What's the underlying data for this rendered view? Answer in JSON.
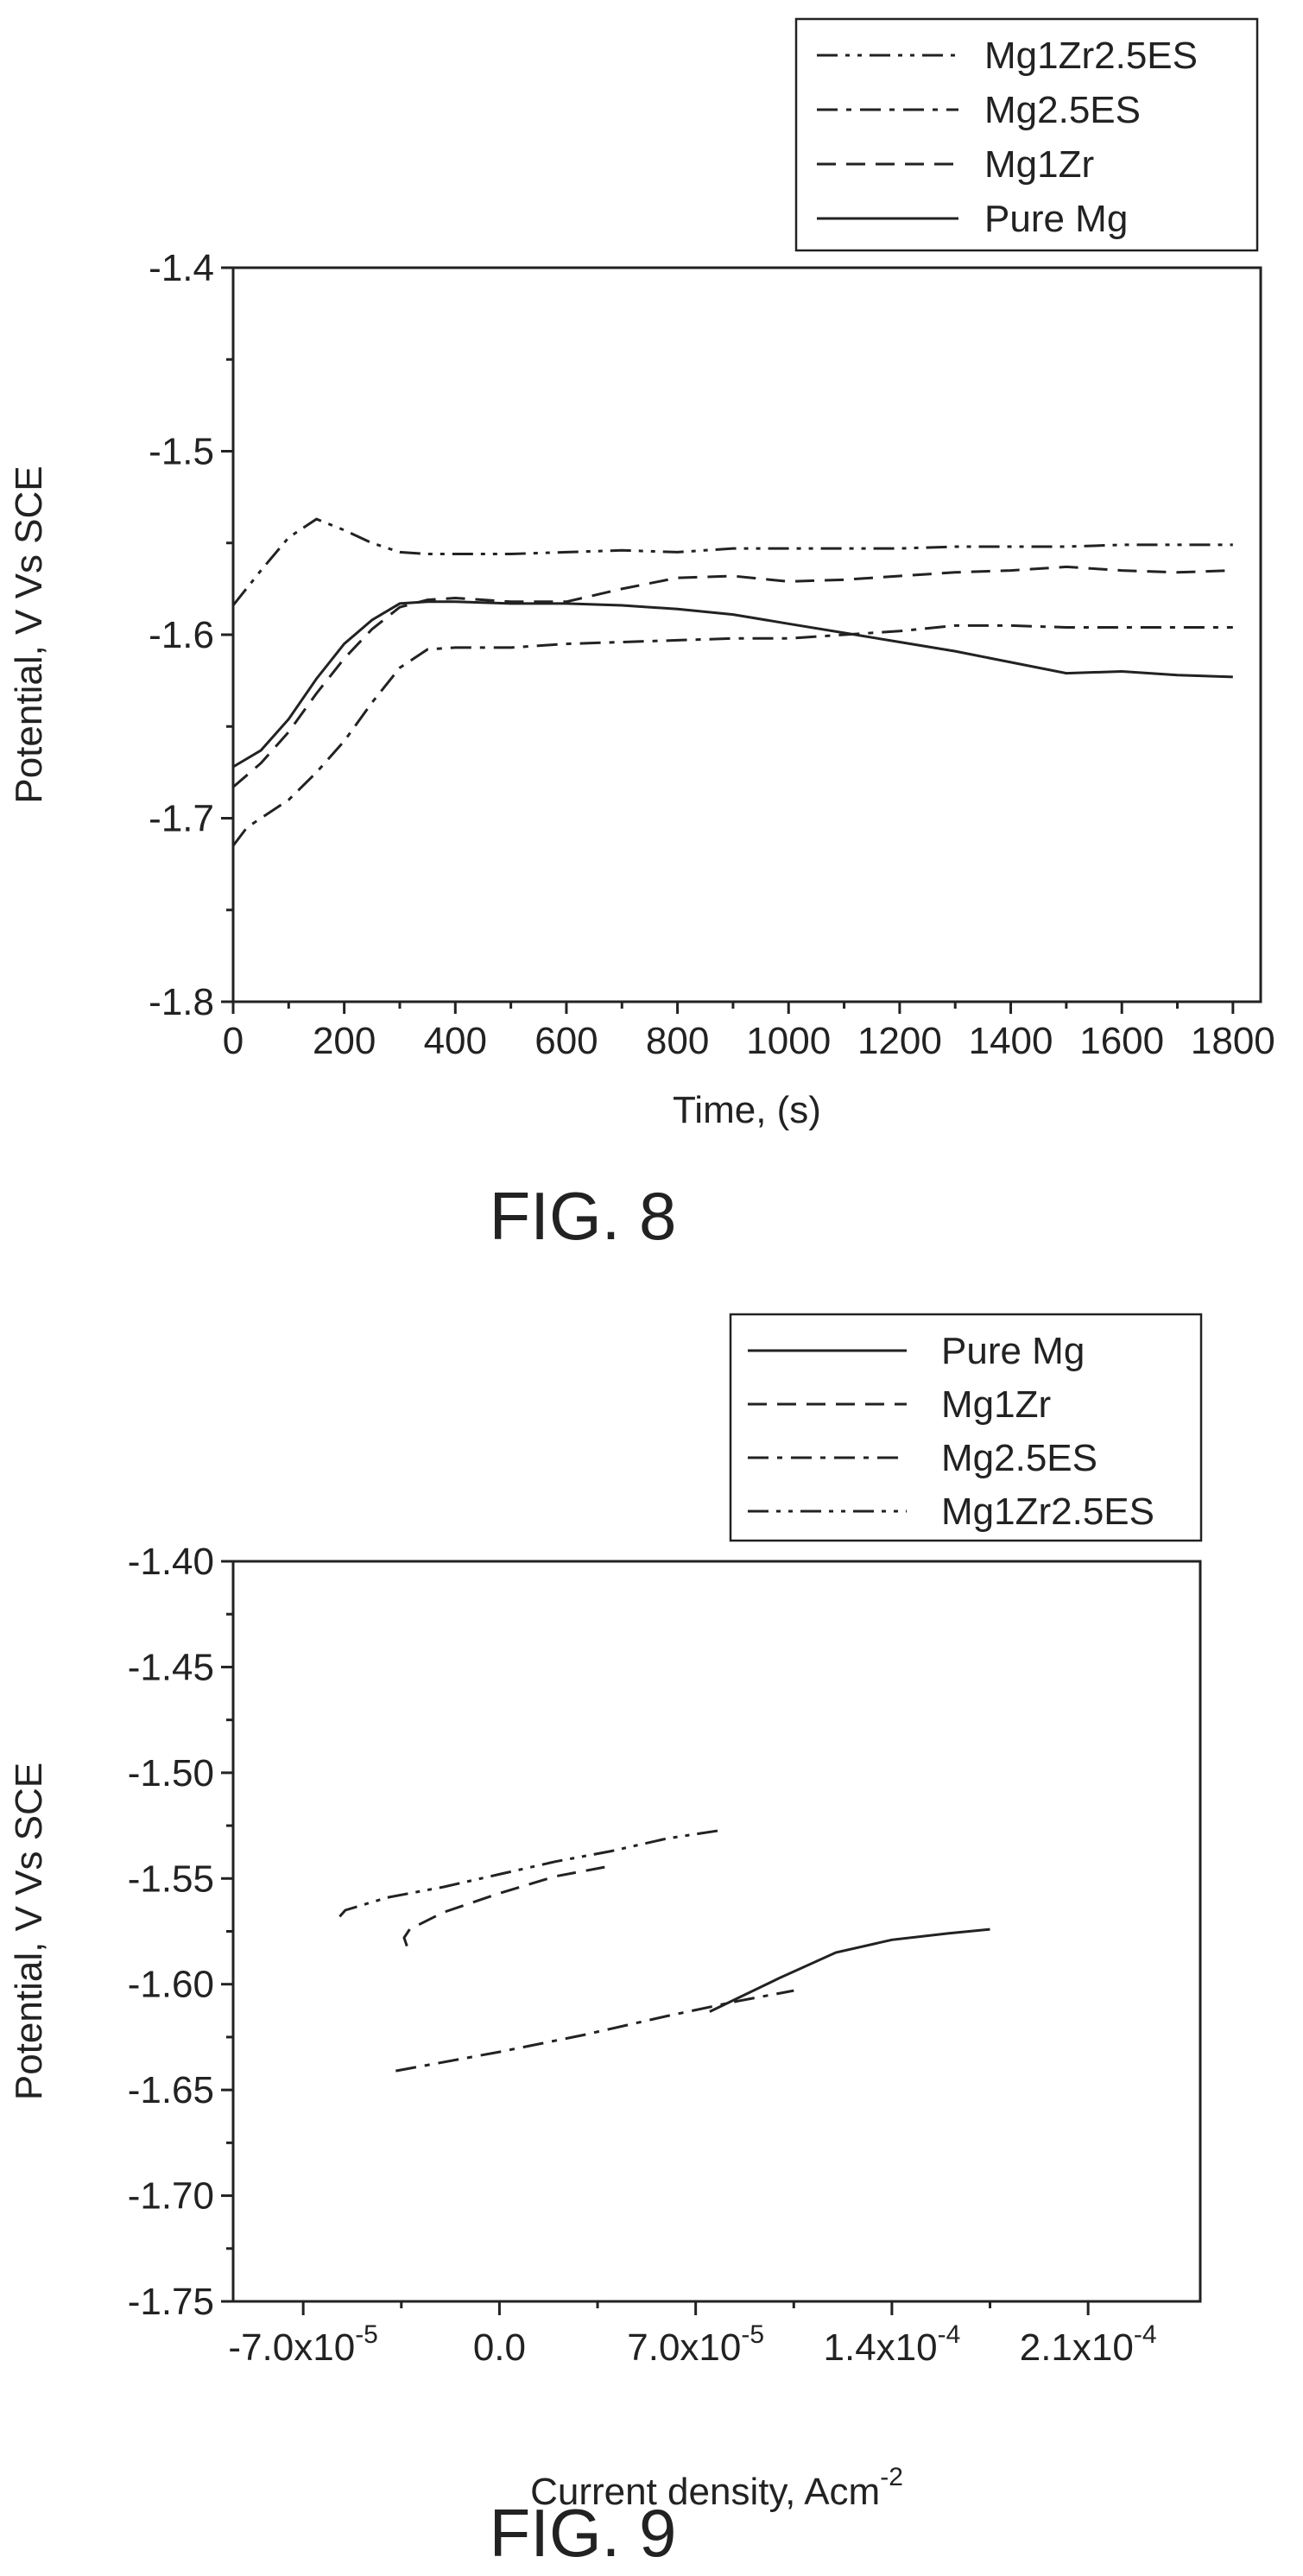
{
  "chart_data": [
    {
      "type": "line",
      "caption": "FIG. 8",
      "xlabel": "Time, (s)",
      "ylabel": "Potential, V Vs SCE",
      "xlim": [
        0,
        1850
      ],
      "ylim": [
        -1.8,
        -1.4
      ],
      "xticks": [
        0,
        200,
        400,
        600,
        800,
        1000,
        1200,
        1400,
        1600,
        1800
      ],
      "xtick_labels": [
        "0",
        "200",
        "400",
        "600",
        "800",
        "1000",
        "1200",
        "1400",
        "1600",
        "1800"
      ],
      "yticks": [
        -1.4,
        -1.5,
        -1.6,
        -1.7,
        -1.8
      ],
      "ytick_labels": [
        "-1.4",
        "-1.5",
        "-1.6",
        "-1.7",
        "-1.8"
      ],
      "legend_position": "top-right-outside",
      "legend": [
        "Mg1Zr2.5ES",
        "Mg2.5ES",
        "Mg1Zr",
        "Pure Mg"
      ],
      "series": [
        {
          "name": "Mg1Zr2.5ES",
          "dash": "dash-dot-dot",
          "x": [
            0,
            50,
            100,
            150,
            200,
            250,
            300,
            350,
            400,
            500,
            600,
            700,
            800,
            900,
            1000,
            1100,
            1200,
            1300,
            1400,
            1500,
            1600,
            1700,
            1800
          ],
          "y": [
            -1.584,
            -1.565,
            -1.547,
            -1.537,
            -1.543,
            -1.55,
            -1.555,
            -1.556,
            -1.556,
            -1.556,
            -1.555,
            -1.554,
            -1.555,
            -1.553,
            -1.553,
            -1.553,
            -1.553,
            -1.552,
            -1.552,
            -1.552,
            -1.551,
            -1.551,
            -1.551
          ]
        },
        {
          "name": "Mg2.5ES",
          "dash": "dash-dot",
          "x": [
            0,
            25,
            50,
            100,
            150,
            200,
            250,
            300,
            350,
            400,
            500,
            600,
            700,
            800,
            900,
            1000,
            1100,
            1200,
            1300,
            1400,
            1500,
            1600,
            1700,
            1800
          ],
          "y": [
            -1.715,
            -1.705,
            -1.7,
            -1.69,
            -1.675,
            -1.658,
            -1.637,
            -1.618,
            -1.608,
            -1.607,
            -1.607,
            -1.605,
            -1.604,
            -1.603,
            -1.602,
            -1.602,
            -1.6,
            -1.598,
            -1.595,
            -1.595,
            -1.596,
            -1.596,
            -1.596,
            -1.596
          ]
        },
        {
          "name": "Mg1Zr",
          "dash": "dashed",
          "x": [
            0,
            50,
            100,
            150,
            200,
            250,
            300,
            350,
            400,
            500,
            600,
            700,
            800,
            900,
            1000,
            1100,
            1200,
            1300,
            1400,
            1500,
            1600,
            1700,
            1800
          ],
          "y": [
            -1.683,
            -1.67,
            -1.653,
            -1.632,
            -1.613,
            -1.597,
            -1.585,
            -1.581,
            -1.58,
            -1.582,
            -1.582,
            -1.575,
            -1.569,
            -1.568,
            -1.571,
            -1.57,
            -1.568,
            -1.566,
            -1.565,
            -1.563,
            -1.565,
            -1.566,
            -1.565
          ]
        },
        {
          "name": "Pure Mg",
          "dash": "solid",
          "x": [
            0,
            50,
            100,
            150,
            200,
            250,
            300,
            350,
            400,
            500,
            600,
            700,
            800,
            900,
            1000,
            1100,
            1200,
            1300,
            1400,
            1500,
            1600,
            1700,
            1800
          ],
          "y": [
            -1.672,
            -1.663,
            -1.646,
            -1.624,
            -1.605,
            -1.592,
            -1.583,
            -1.582,
            -1.582,
            -1.583,
            -1.583,
            -1.584,
            -1.586,
            -1.589,
            -1.594,
            -1.599,
            -1.604,
            -1.609,
            -1.615,
            -1.621,
            -1.62,
            -1.622,
            -1.623
          ]
        }
      ]
    },
    {
      "type": "line",
      "caption": "FIG. 9",
      "xlabel": "Current density, Acm",
      "xlabel_sup": "-2",
      "ylabel": "Potential, V Vs SCE",
      "xlim": [
        -9.5e-05,
        0.00025
      ],
      "ylim": [
        -1.75,
        -1.4
      ],
      "xticks": [
        -7e-05,
        0.0,
        7e-05,
        0.00014,
        0.00021
      ],
      "xtick_labels": [
        {
          "base": "-7.0x10",
          "exp": "-5"
        },
        {
          "base": "0.0",
          "exp": ""
        },
        {
          "base": "7.0x10",
          "exp": "-5"
        },
        {
          "base": "1.4x10",
          "exp": "-4"
        },
        {
          "base": "2.1x10",
          "exp": "-4"
        }
      ],
      "yticks": [
        -1.4,
        -1.45,
        -1.5,
        -1.55,
        -1.6,
        -1.65,
        -1.7,
        -1.75
      ],
      "ytick_labels": [
        "-1.40",
        "-1.45",
        "-1.50",
        "-1.55",
        "-1.60",
        "-1.65",
        "-1.70",
        "-1.75"
      ],
      "legend_position": "top-right-outside",
      "legend": [
        "Pure Mg",
        "Mg1Zr",
        "Mg2.5ES",
        "Mg1Zr2.5ES"
      ],
      "series": [
        {
          "name": "Pure Mg",
          "dash": "solid",
          "x": [
            7.5e-05,
            0.0001,
            0.00012,
            0.00014,
            0.00016,
            0.000175
          ],
          "y": [
            -1.613,
            -1.597,
            -1.585,
            -1.579,
            -1.576,
            -1.574
          ]
        },
        {
          "name": "Mg1Zr",
          "dash": "dashed",
          "x": [
            -3.3e-05,
            -3.4e-05,
            -3.2e-05,
            -2e-05,
            0.0,
            2e-05,
            4e-05
          ],
          "y": [
            -1.582,
            -1.578,
            -1.574,
            -1.566,
            -1.557,
            -1.549,
            -1.544
          ]
        },
        {
          "name": "Mg2.5ES",
          "dash": "dash-dot",
          "x": [
            -3.7e-05,
            0.0,
            3e-05,
            6e-05,
            8.5e-05,
            0.000105
          ],
          "y": [
            -1.641,
            -1.632,
            -1.624,
            -1.615,
            -1.608,
            -1.603
          ]
        },
        {
          "name": "Mg1Zr2.5ES",
          "dash": "dash-dot-dot",
          "x": [
            -5.7e-05,
            -5.5e-05,
            -4e-05,
            -2e-05,
            0.0,
            2e-05,
            4e-05,
            6e-05,
            8e-05
          ],
          "y": [
            -1.568,
            -1.565,
            -1.559,
            -1.554,
            -1.548,
            -1.542,
            -1.537,
            -1.531,
            -1.527
          ]
        }
      ]
    }
  ]
}
